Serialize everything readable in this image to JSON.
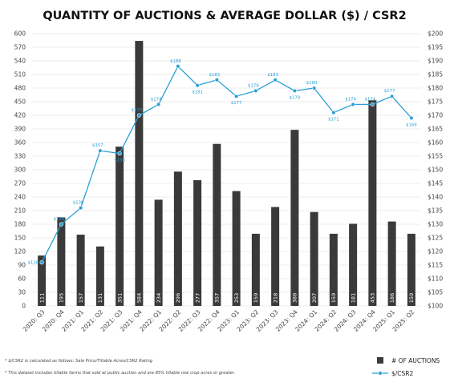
{
  "chart_data": {
    "type": "bar+line",
    "title": "QUANTITY OF AUCTIONS & AVERAGE DOLLAR ($) / CSR2",
    "categories": [
      "2020: Q3",
      "2020: Q4",
      "2021: Q1",
      "2021: Q2",
      "2021: Q3",
      "2021: Q4",
      "2022: Q1",
      "2022: Q2",
      "2022: Q3",
      "2022: Q4",
      "2023: Q1",
      "2023: Q2",
      "2023: Q3",
      "2023: Q4",
      "2024: Q1",
      "2024: Q2",
      "2024: Q3",
      "2024: Q4",
      "2025: Q1",
      "2025: Q2"
    ],
    "series": [
      {
        "name": "# OF AUCTIONS",
        "type": "bar",
        "axis": "left",
        "color": "#3a3a3a",
        "values": [
          111,
          195,
          157,
          131,
          351,
          584,
          234,
          296,
          277,
          357,
          253,
          159,
          218,
          388,
          207,
          159,
          181,
          453,
          186,
          159
        ]
      },
      {
        "name": "$/CSR2",
        "type": "line",
        "axis": "right",
        "color": "#2a9fd6",
        "values": [
          116,
          130,
          136,
          157,
          156,
          170,
          174,
          188,
          181,
          183,
          177,
          179,
          183,
          179,
          180,
          171,
          174,
          174,
          177,
          169
        ],
        "labels": [
          "$116",
          "$130",
          "$136",
          "$157",
          "$156",
          "$170",
          "$174",
          "$188",
          "$181",
          "$183",
          "$177",
          "$179",
          "$183",
          "$179",
          "$180",
          "$171",
          "$174",
          "$174",
          "$177",
          "$169"
        ]
      }
    ],
    "y_left": {
      "ylim": [
        0,
        600
      ],
      "ticks": [
        0,
        30,
        60,
        90,
        120,
        150,
        180,
        210,
        240,
        270,
        300,
        330,
        360,
        390,
        420,
        450,
        480,
        510,
        540,
        570,
        600
      ]
    },
    "y_right": {
      "ylim": [
        100,
        200
      ],
      "ticks": [
        "$100",
        "$105",
        "$110",
        "$115",
        "$120",
        "$125",
        "$130",
        "$135",
        "$140",
        "$145",
        "$150",
        "$155",
        "$160",
        "$165",
        "$170",
        "$175",
        "$180",
        "$185",
        "$190",
        "$195",
        "$200"
      ]
    },
    "grid": true,
    "legend": "bottom-right",
    "footnotes": [
      "* $/CSR2 is calculated as follows: Sale Price/Tillable Acres/CSR2 Rating",
      "* This dataset includes tillable farms that sold at public auction and are 85% tillable row crop acres or greater."
    ]
  }
}
